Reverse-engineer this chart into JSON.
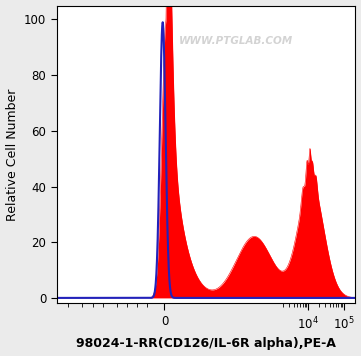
{
  "title": "98024-1-RR(CD126/IL-6R alpha),PE-A",
  "ylabel": "Relative Cell Number",
  "xlim_display": [
    -1000,
    200000
  ],
  "ylim": [
    -2,
    105
  ],
  "yticks": [
    0,
    20,
    40,
    60,
    80,
    100
  ],
  "bg_color": "#ebebeb",
  "plot_bg": "#ffffff",
  "watermark": "WWW.PTGLAB.COM",
  "red_color": "#ff0000",
  "blue_color": "#2222bb",
  "title_fontsize": 9,
  "ylabel_fontsize": 9,
  "tick_fontsize": 8.5
}
